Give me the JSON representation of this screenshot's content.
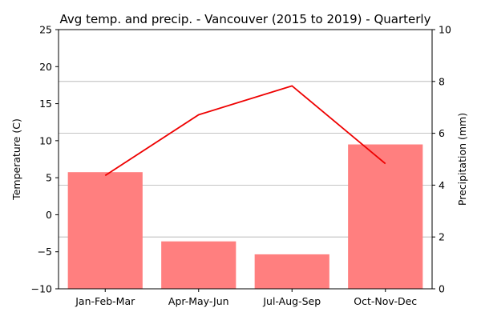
{
  "chart_data": {
    "type": "bar+line",
    "title": "Avg temp. and precip. - Vancouver (2015 to 2019) - Quarterly",
    "categories": [
      "Jan-Feb-Mar",
      "Apr-May-Jun",
      "Jul-Aug-Sep",
      "Oct-Nov-Dec"
    ],
    "left_axis": {
      "label": "Temperature (C)",
      "ylim": [
        -10,
        25
      ],
      "ticks": [
        -10,
        -5,
        0,
        5,
        10,
        15,
        20,
        25
      ]
    },
    "right_axis": {
      "label": "Precipitation (mm)",
      "ylim": [
        0,
        10
      ],
      "ticks": [
        0,
        2,
        4,
        6,
        8,
        10
      ]
    },
    "grid": "horizontal lines at right-axis ticks",
    "series": [
      {
        "kind": "line",
        "axis": "left",
        "color": "#ee0000",
        "values": [
          5.3,
          13.5,
          17.4,
          6.9
        ]
      },
      {
        "kind": "bar",
        "axis": "right",
        "color": "#ff7f7f",
        "values": [
          4.5,
          1.83,
          1.33,
          5.57
        ]
      }
    ]
  }
}
